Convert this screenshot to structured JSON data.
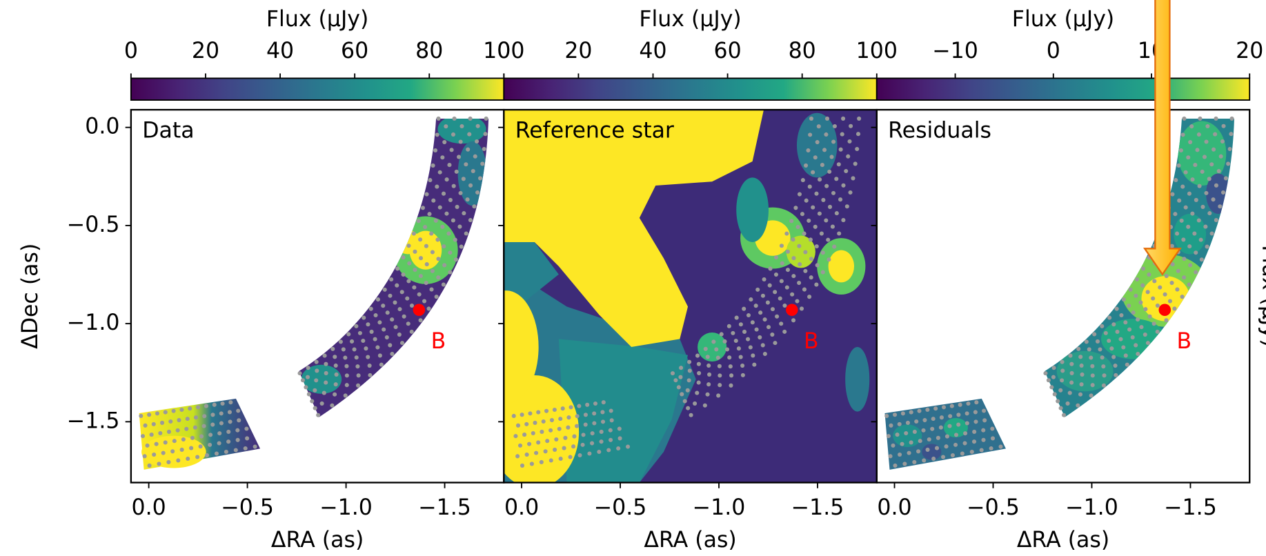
{
  "chart_data": [
    {
      "type": "image",
      "title": "Data",
      "colorbar_label": "Flux (μJy)",
      "clim": [
        0,
        100
      ],
      "cticks": [
        0,
        20,
        40,
        60,
        80,
        100
      ],
      "xlabel": "ΔRA (as)",
      "ylabel": "ΔDec (as)",
      "xlim": [
        0.09,
        -1.8
      ],
      "ylim": [
        -1.81,
        0.09
      ],
      "xticks": [
        {
          "value": 0,
          "label": "0.0"
        },
        {
          "value": -0.5,
          "label": "−0.5"
        },
        {
          "value": -1,
          "label": "−1.0"
        },
        {
          "value": -1.5,
          "label": "−1.5"
        }
      ],
      "yticks": [
        {
          "value": 0,
          "label": "0.0"
        },
        {
          "value": -0.5,
          "label": "−0.5"
        },
        {
          "value": -1,
          "label": "−1.0"
        },
        {
          "value": -1.5,
          "label": "−1.5"
        }
      ],
      "points": {
        "name": "B",
        "color": "#ff0000",
        "x": [
          -1.37
        ],
        "y": [
          -0.93
        ]
      }
    },
    {
      "type": "image",
      "title": "Reference star",
      "colorbar_label": "Flux (μJy)",
      "clim": [
        0,
        100
      ],
      "cticks": [
        0,
        20,
        40,
        60,
        80,
        100
      ],
      "xlabel": "ΔRA (as)",
      "xlim": [
        0.09,
        -1.8
      ],
      "ylim": [
        -1.81,
        0.09
      ],
      "xticks": [
        {
          "value": 0,
          "label": "0.0"
        },
        {
          "value": -0.5,
          "label": "−0.5"
        },
        {
          "value": -1,
          "label": "−1.0"
        },
        {
          "value": -1.5,
          "label": "−1.5"
        }
      ],
      "yticks": [
        0,
        -0.5,
        -1,
        -1.5
      ],
      "points": {
        "name": "B",
        "color": "#ff0000",
        "x": [
          -1.37
        ],
        "y": [
          -0.93
        ]
      }
    },
    {
      "type": "image",
      "title": "Residuals",
      "colorbar_label": "Flux (μJy)",
      "clim": [
        -18,
        20
      ],
      "cticks": [
        {
          "value": -10,
          "label": "−10"
        },
        0,
        10,
        20
      ],
      "xlabel": "ΔRA (as)",
      "side_label": "Flux (μJy)",
      "xlim": [
        0.09,
        -1.8
      ],
      "ylim": [
        -1.81,
        0.09
      ],
      "xticks": [
        {
          "value": 0,
          "label": "0.0"
        },
        {
          "value": -0.5,
          "label": "−0.5"
        },
        {
          "value": -1,
          "label": "−1.0"
        },
        {
          "value": -1.5,
          "label": "−1.5"
        }
      ],
      "yticks": [
        0,
        -0.5,
        -1,
        -1.5
      ],
      "points": {
        "name": "B",
        "color": "#ff0000",
        "x": [
          -1.37
        ],
        "y": [
          -0.93
        ]
      }
    }
  ]
}
